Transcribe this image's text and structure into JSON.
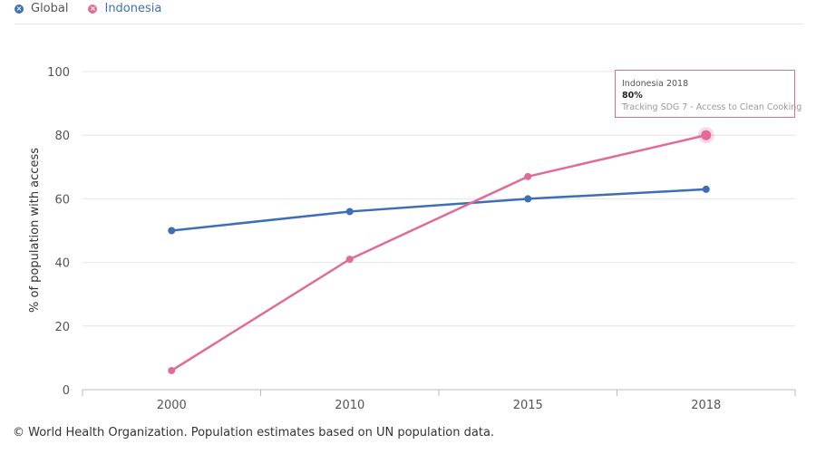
{
  "legend": [
    {
      "label": "Global",
      "color": "#3d6fb6",
      "icon": "close-icon"
    },
    {
      "label": "Indonesia",
      "color": "#e16b98",
      "icon": "close-icon"
    }
  ],
  "tooltip": {
    "title": "Indonesia 2018",
    "value": "80%",
    "subtitle": "Tracking SDG 7 - Access to Clean Cooking"
  },
  "footer": "© World Health Organization. Population estimates based on UN population data.",
  "chart_data": {
    "type": "line",
    "title": "",
    "xlabel": "",
    "ylabel": "% of population with access",
    "categories": [
      "2000",
      "2010",
      "2015",
      "2018"
    ],
    "ylim": [
      0,
      100
    ],
    "yticks": [
      0,
      20,
      40,
      60,
      80,
      100
    ],
    "grid": true,
    "legend_position": "top-left",
    "series": [
      {
        "name": "Global",
        "color": "#3d6fb6",
        "values": [
          50,
          56,
          60,
          63
        ]
      },
      {
        "name": "Indonesia",
        "color": "#e16b98",
        "values": [
          6,
          41,
          67,
          80
        ]
      }
    ],
    "highlight": {
      "series": "Indonesia",
      "category": "2018",
      "value": 80
    }
  }
}
